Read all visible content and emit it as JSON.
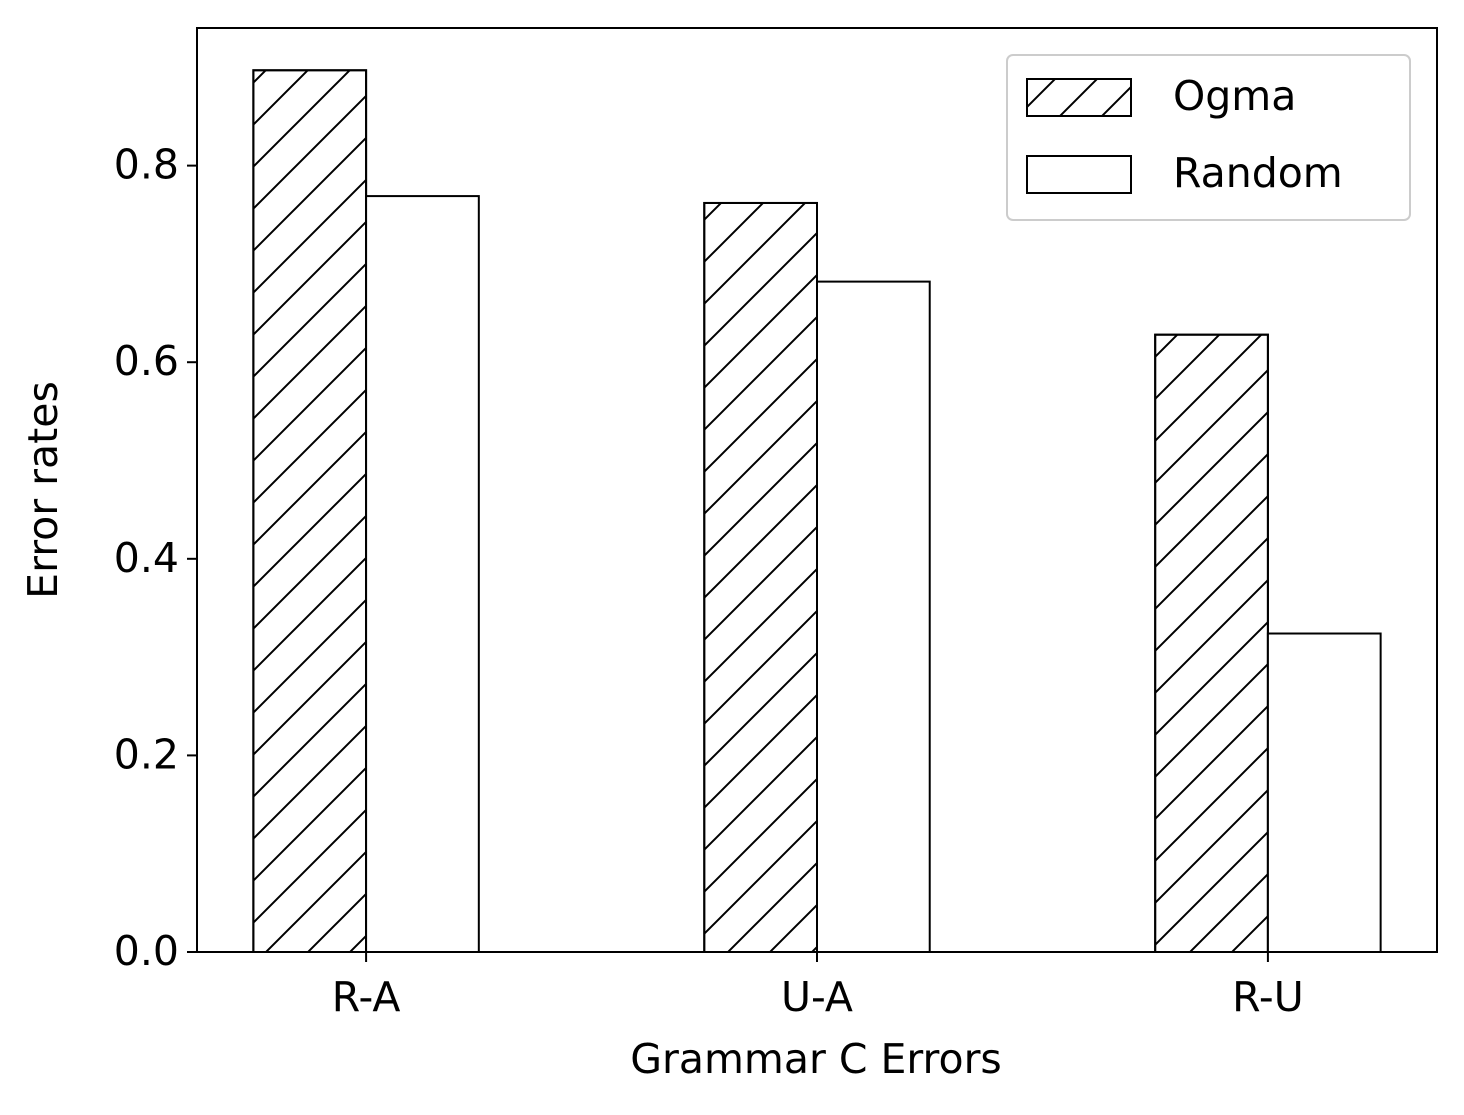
{
  "chart_data": {
    "type": "bar",
    "x_label": "Grammar C Errors",
    "y_label": "Error rates",
    "categories": [
      "R-A",
      "U-A",
      "R-U"
    ],
    "series": [
      {
        "name": "Ogma",
        "color": "#ffffff",
        "hatch": "/",
        "values": [
          0.897,
          0.762,
          0.628
        ]
      },
      {
        "name": "Random",
        "color": "#ffffff",
        "hatch": null,
        "values": [
          0.769,
          0.682,
          0.324
        ]
      }
    ],
    "edge_color": "#000000",
    "ylim": [
      0,
      0.94
    ],
    "yticks": [
      {
        "value": 0,
        "label": "0.0"
      },
      0.2,
      0.4,
      0.6,
      0.8
    ],
    "grid": false,
    "legend": "upper right"
  }
}
